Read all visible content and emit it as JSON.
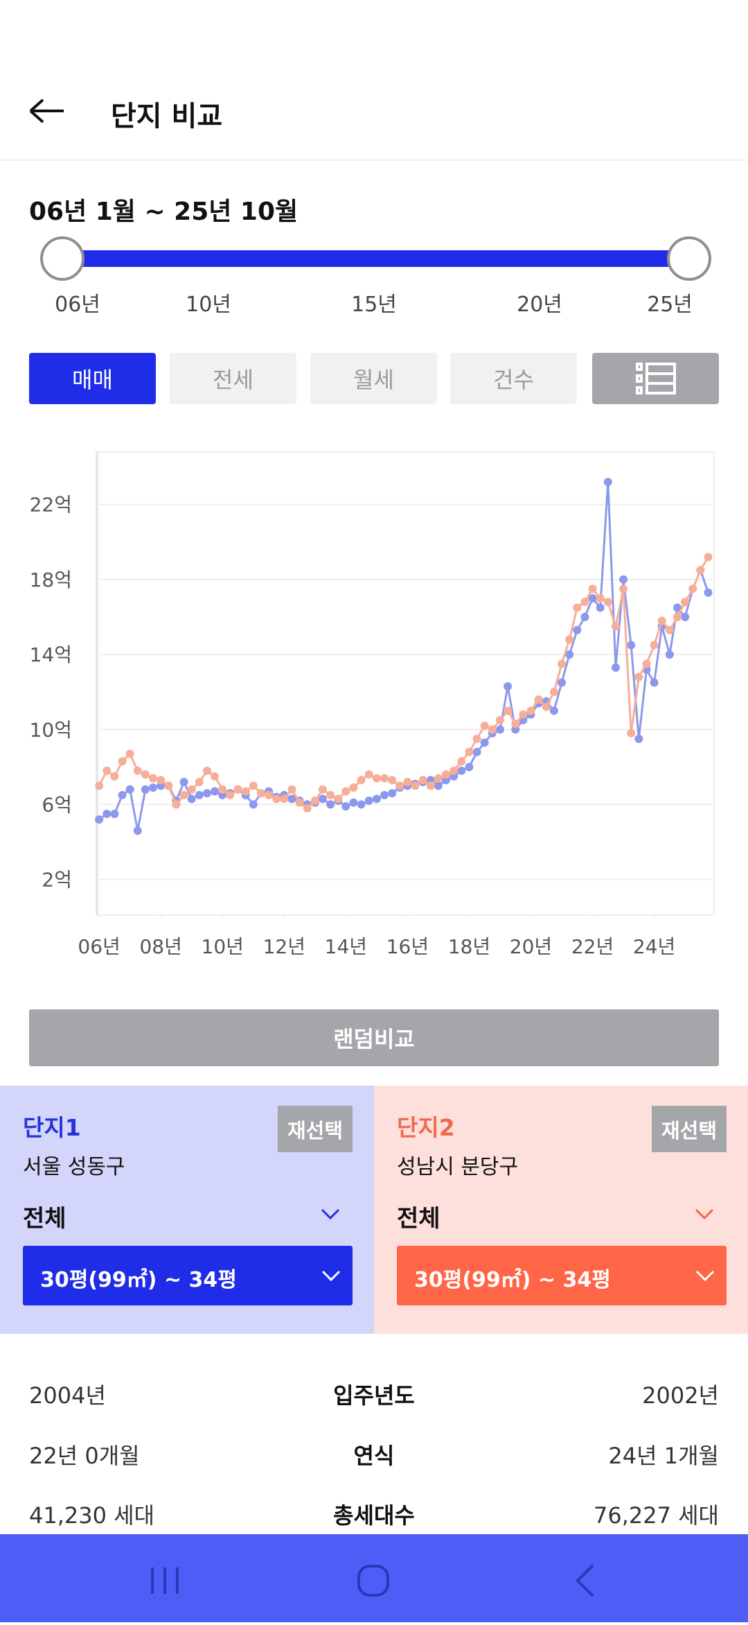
{
  "header": {
    "title": "단지 비교"
  },
  "period": {
    "label": "06년 1월 ~ 25년 10월",
    "ticks": [
      "06년",
      "10년",
      "15년",
      "20년",
      "25년"
    ]
  },
  "tabs": [
    "매매",
    "전세",
    "월세",
    "건수"
  ],
  "chart_data": {
    "type": "line",
    "x": [
      6,
      6.25,
      6.5,
      6.75,
      7,
      7.25,
      7.5,
      7.75,
      8,
      8.25,
      8.5,
      8.75,
      9,
      9.25,
      9.5,
      9.75,
      10,
      10.25,
      10.5,
      10.75,
      11,
      11.25,
      11.5,
      11.75,
      12,
      12.25,
      12.5,
      12.75,
      13,
      13.25,
      13.5,
      13.75,
      14,
      14.25,
      14.5,
      14.75,
      15,
      15.25,
      15.5,
      15.75,
      16,
      16.25,
      16.5,
      16.75,
      17,
      17.25,
      17.5,
      17.75,
      18,
      18.25,
      18.5,
      18.75,
      19,
      19.25,
      19.5,
      19.75,
      20,
      20.25,
      20.5,
      20.75,
      21,
      21.25,
      21.5,
      21.75,
      22,
      22.25,
      22.5,
      22.75,
      23,
      23.25,
      23.5,
      23.75,
      24,
      24.25,
      24.5,
      24.75,
      25,
      25.25,
      25.5,
      25.75
    ],
    "series": [
      {
        "color": "#8c98ec",
        "values": [
          5.2,
          5.5,
          5.5,
          6.5,
          6.8,
          4.6,
          6.8,
          6.9,
          7.0,
          7.0,
          6.2,
          7.2,
          6.3,
          6.5,
          6.6,
          6.7,
          6.5,
          6.6,
          6.8,
          6.5,
          6.0,
          6.6,
          6.7,
          6.4,
          6.5,
          6.3,
          6.2,
          6.0,
          6.1,
          6.3,
          6.0,
          6.2,
          5.9,
          6.1,
          6.0,
          6.2,
          6.3,
          6.5,
          6.6,
          6.9,
          7.0,
          7.1,
          7.2,
          7.3,
          7.0,
          7.3,
          7.5,
          7.8,
          8.0,
          8.8,
          9.3,
          9.8,
          10.0,
          12.3,
          10.0,
          10.5,
          10.8,
          11.4,
          11.5,
          11.0,
          12.5,
          14.0,
          15.3,
          16.0,
          17.0,
          16.5,
          23.2,
          13.3,
          18.0,
          14.5,
          9.5,
          13.2,
          12.5,
          15.5,
          14.0,
          16.5,
          16.0,
          17.5,
          18.5,
          17.3
        ]
      },
      {
        "color": "#f6ae98",
        "values": [
          7.0,
          7.8,
          7.5,
          8.3,
          8.7,
          7.8,
          7.6,
          7.4,
          7.3,
          7.0,
          6.0,
          6.5,
          6.8,
          7.2,
          7.8,
          7.5,
          6.8,
          6.5,
          6.8,
          6.7,
          7.0,
          6.6,
          6.5,
          6.3,
          6.3,
          6.8,
          6.1,
          5.8,
          6.2,
          6.8,
          6.5,
          6.3,
          6.7,
          6.9,
          7.3,
          7.6,
          7.4,
          7.4,
          7.3,
          7.0,
          7.2,
          7.0,
          7.3,
          7.0,
          7.4,
          7.6,
          7.8,
          8.3,
          8.8,
          9.5,
          10.2,
          10.0,
          10.5,
          11.0,
          10.3,
          10.8,
          11.0,
          11.6,
          11.2,
          12.0,
          13.5,
          14.8,
          16.5,
          16.8,
          17.5,
          17.0,
          16.8,
          15.5,
          17.5,
          9.8,
          12.8,
          13.5,
          14.5,
          15.8,
          15.3,
          16.0,
          16.8,
          17.5,
          18.5,
          19.2
        ]
      }
    ],
    "xlim": [
      5.93,
      25.94
    ],
    "xticks": [
      {
        "value": 6,
        "label": "06년"
      },
      {
        "value": 8,
        "label": "08년"
      },
      {
        "value": 10,
        "label": "10년"
      },
      {
        "value": 12,
        "label": "12년"
      },
      {
        "value": 14,
        "label": "14년"
      },
      {
        "value": 16,
        "label": "16년"
      },
      {
        "value": 18,
        "label": "18년"
      },
      {
        "value": 20,
        "label": "20년"
      },
      {
        "value": 22,
        "label": "22년"
      },
      {
        "value": 24,
        "label": "24년"
      }
    ],
    "ylim": [
      0.1,
      24.8
    ],
    "yticks": [
      {
        "value": 2,
        "label": "2억"
      },
      {
        "value": 6,
        "label": "6억"
      },
      {
        "value": 10,
        "label": "10억"
      },
      {
        "value": 14,
        "label": "14억"
      },
      {
        "value": 18,
        "label": "18억"
      },
      {
        "value": 22,
        "label": "22억"
      }
    ],
    "grid": true
  },
  "random_button": "랜덤비교",
  "complexes": [
    {
      "title": "단지1",
      "reselect": "재선택",
      "region": "서울 성동구",
      "filter": "전체",
      "size": "30평(99㎡) ~ 34평"
    },
    {
      "title": "단지2",
      "reselect": "재선택",
      "region": "성남시 분당구",
      "filter": "전체",
      "size": "30평(99㎡) ~ 34평"
    }
  ],
  "table": {
    "rows": [
      [
        "2004년",
        "입주년도",
        "2002년"
      ],
      [
        "22년 0개월",
        "연식",
        "24년 1개월"
      ],
      [
        "41,230 세대",
        "총세대수",
        "76,227 세대"
      ]
    ]
  }
}
